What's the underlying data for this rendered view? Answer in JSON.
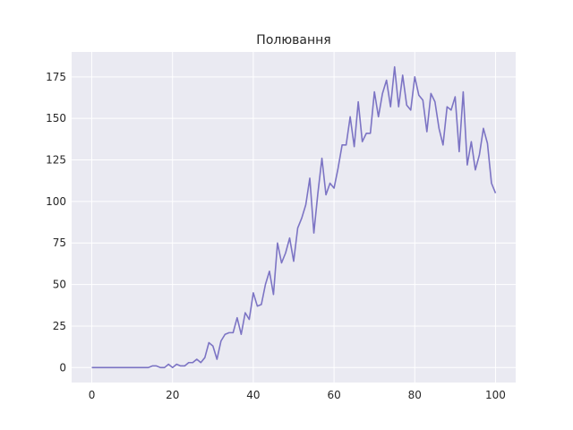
{
  "chart_data": {
    "type": "line",
    "title": "Полювання",
    "xlabel": "",
    "ylabel": "",
    "xlim": [
      -5,
      105
    ],
    "ylim": [
      -9,
      190
    ],
    "grid": true,
    "legend": "none",
    "x_ticks": [
      0,
      20,
      40,
      60,
      80,
      100
    ],
    "y_ticks": [
      0,
      25,
      50,
      75,
      100,
      125,
      150,
      175
    ],
    "colors": {
      "background": "#eaeaf2",
      "grid": "#ffffff",
      "line": "#7c74c4"
    },
    "series": [
      {
        "x": [
          0,
          1,
          2,
          3,
          4,
          5,
          6,
          7,
          8,
          9,
          10,
          11,
          12,
          13,
          14,
          15,
          16,
          17,
          18,
          19,
          20,
          21,
          22,
          23,
          24,
          25,
          26,
          27,
          28,
          29,
          30,
          31,
          32,
          33,
          34,
          35,
          36,
          37,
          38,
          39,
          40,
          41,
          42,
          43,
          44,
          45,
          46,
          47,
          48,
          49,
          50,
          51,
          52,
          53,
          54,
          55,
          56,
          57,
          58,
          59,
          60,
          61,
          62,
          63,
          64,
          65,
          66,
          67,
          68,
          69,
          70,
          71,
          72,
          73,
          74,
          75,
          76,
          77,
          78,
          79,
          80,
          81,
          82,
          83,
          84,
          85,
          86,
          87,
          88,
          89,
          90,
          91,
          92,
          93,
          94,
          95,
          96,
          97,
          98,
          99,
          100
        ],
        "values": [
          0,
          0,
          0,
          0,
          0,
          0,
          0,
          0,
          0,
          0,
          0,
          0,
          0,
          0,
          0,
          1,
          1,
          0,
          0,
          2,
          0,
          2,
          1,
          1,
          3,
          3,
          5,
          3,
          6,
          15,
          13,
          5,
          16,
          20,
          21,
          21,
          30,
          20,
          33,
          29,
          45,
          37,
          38,
          50,
          58,
          44,
          75,
          63,
          69,
          78,
          64,
          84,
          90,
          98,
          114,
          81,
          105,
          126,
          104,
          111,
          108,
          120,
          134,
          134,
          151,
          133,
          160,
          136,
          141,
          141,
          166,
          151,
          165,
          173,
          157,
          181,
          157,
          176,
          158,
          155,
          175,
          164,
          161,
          142,
          165,
          160,
          144,
          134,
          157,
          155,
          163,
          130,
          166,
          122,
          136,
          119,
          128,
          144,
          135,
          111,
          105
        ]
      }
    ]
  }
}
